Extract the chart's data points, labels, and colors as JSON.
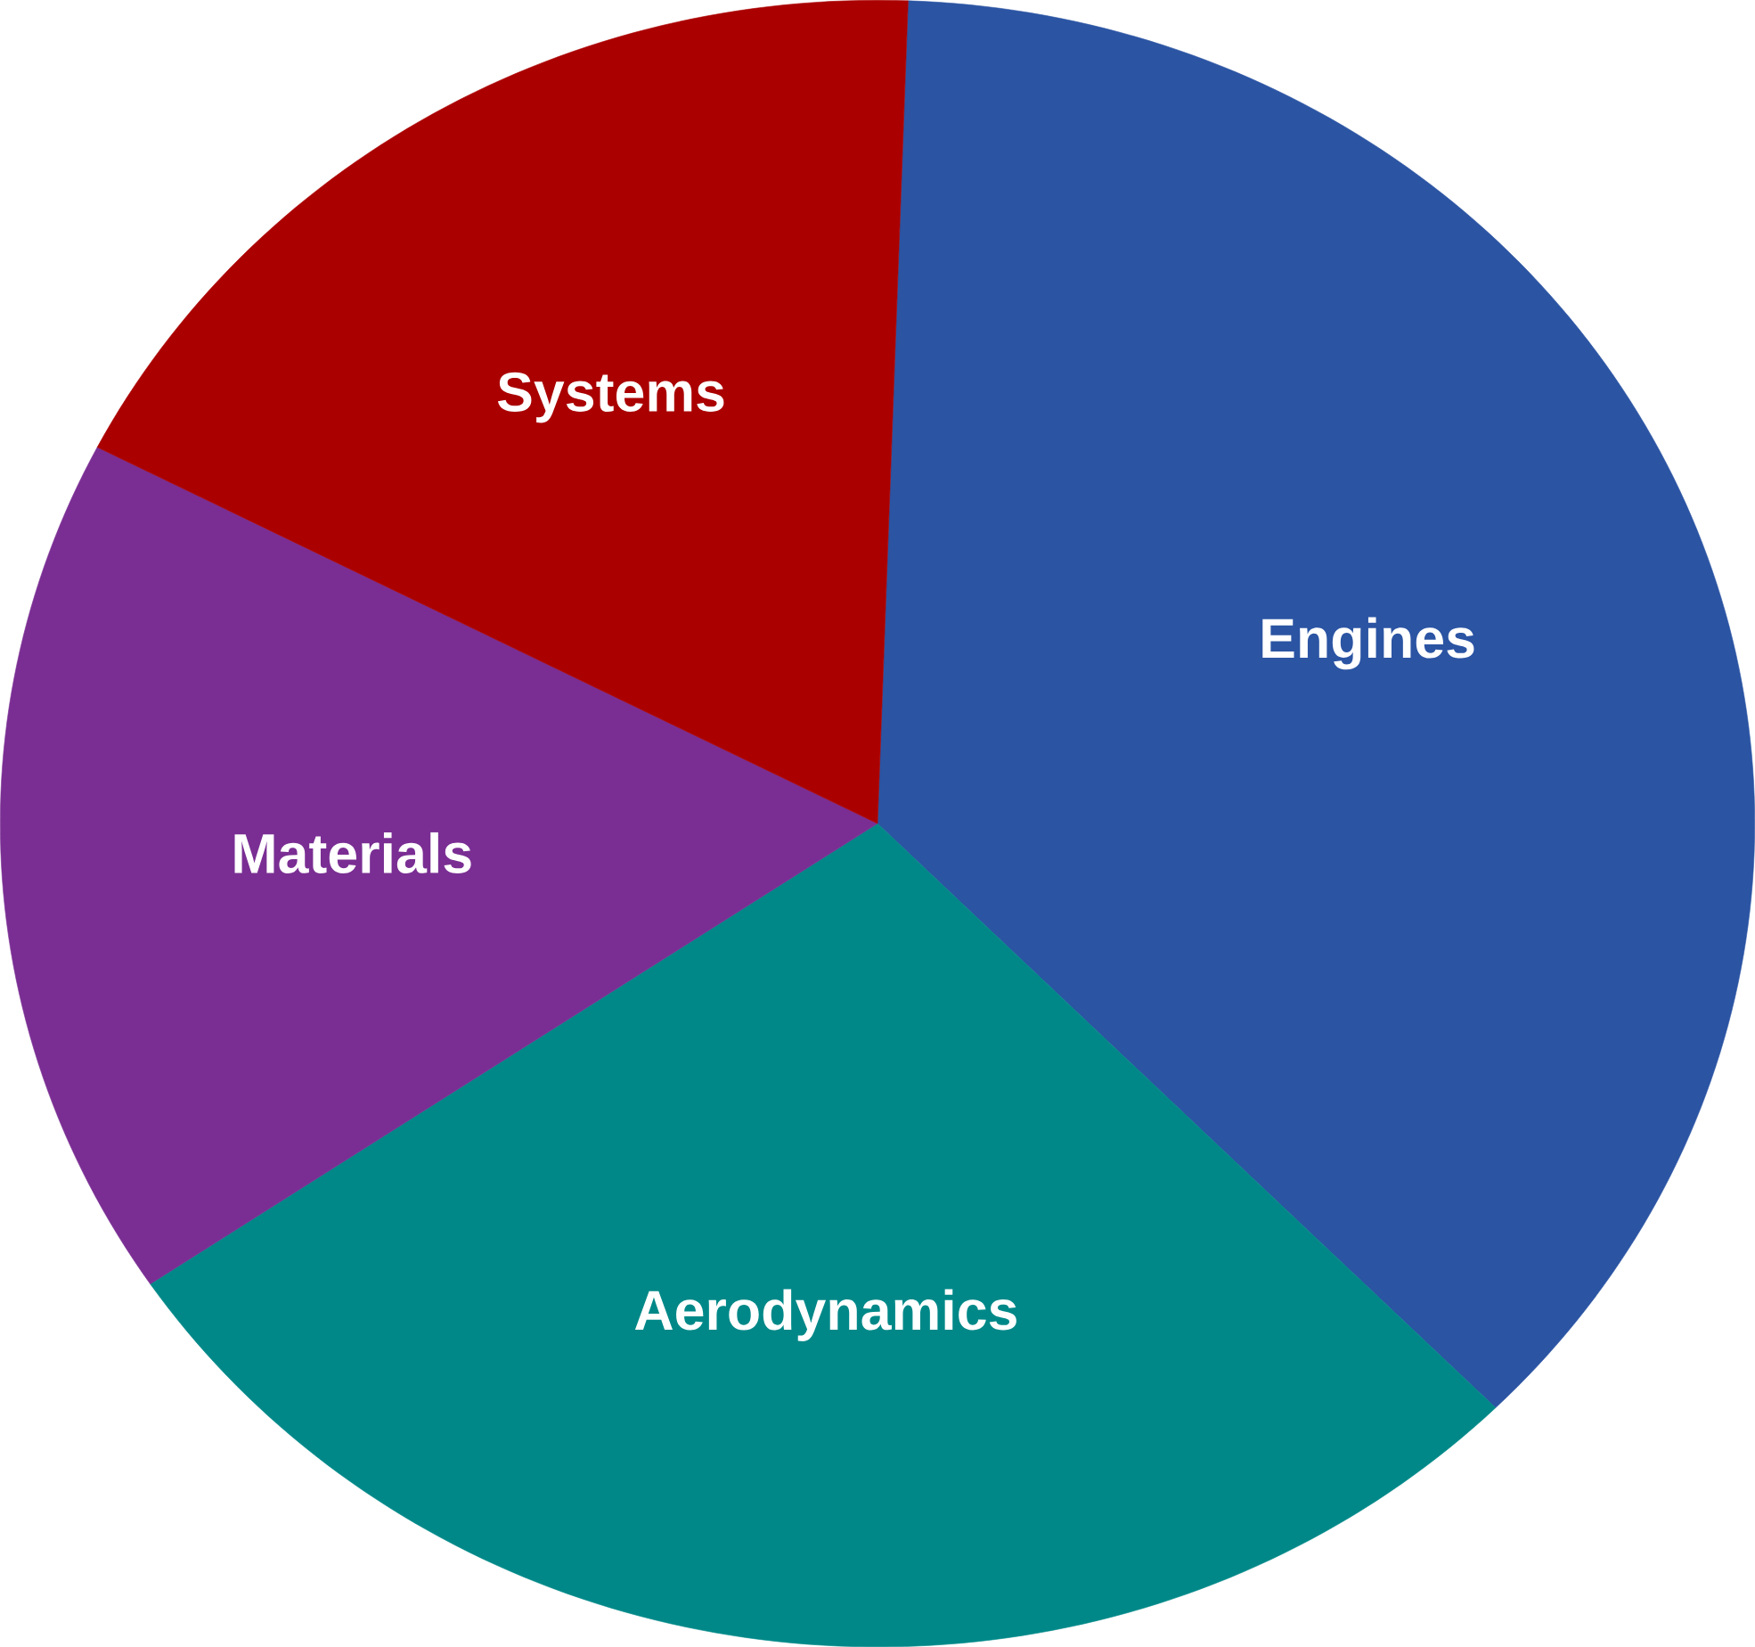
{
  "chart_data": {
    "type": "pie",
    "categories": [
      "Engines",
      "Aerodynamics",
      "Materials",
      "Systems"
    ],
    "values": [
      37,
      28,
      17,
      18
    ],
    "colors": [
      "#2b54a3",
      "#008888",
      "#7a2e93",
      "#aa0000"
    ]
  }
}
